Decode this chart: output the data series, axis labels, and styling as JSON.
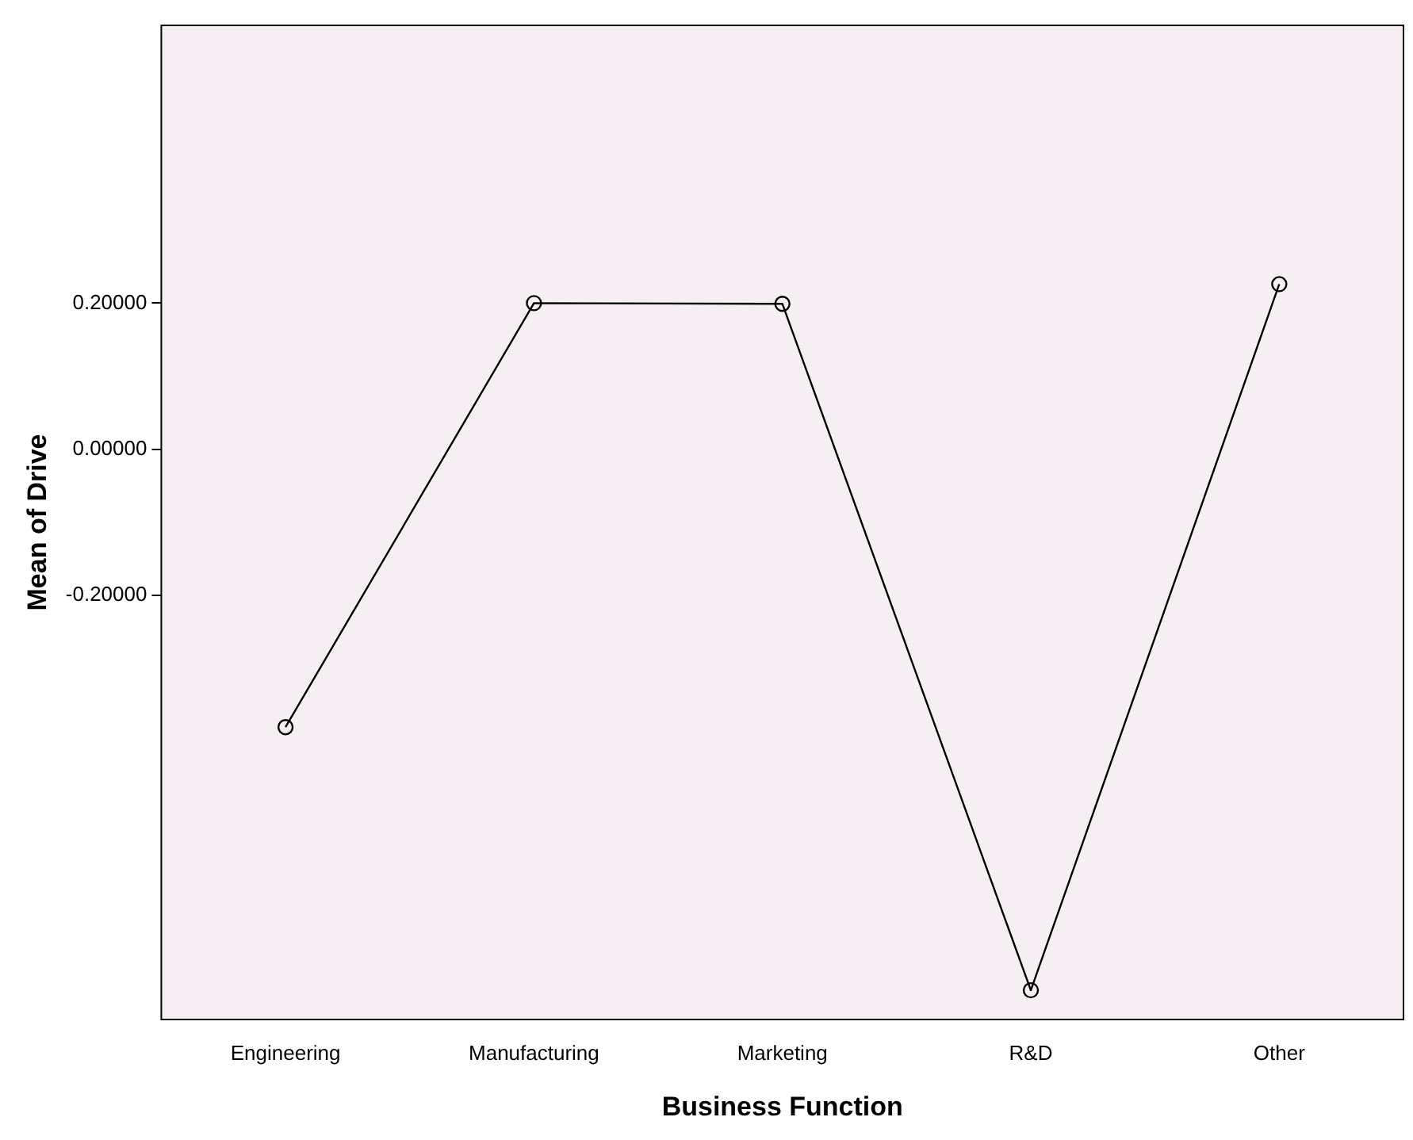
{
  "chart_data": {
    "type": "line",
    "xlabel": "Business Function",
    "ylabel": "Mean of Drive",
    "categories": [
      "Engineering",
      "Manufacturing",
      "Marketing",
      "R&D",
      "Other"
    ],
    "series": [
      {
        "color": "#000000",
        "values": [
          -0.38,
          0.2,
          0.199,
          -0.74,
          0.226
        ]
      }
    ],
    "ylim": [
      -0.78,
      0.58
    ],
    "yticks": [
      {
        "value": -0.2,
        "label": "-0.20000"
      },
      {
        "value": 0,
        "label": "0.00000"
      },
      {
        "value": 0.2,
        "label": "0.20000"
      }
    ],
    "grid": false,
    "legend": false,
    "marker": "circle",
    "line_style": "solid"
  }
}
